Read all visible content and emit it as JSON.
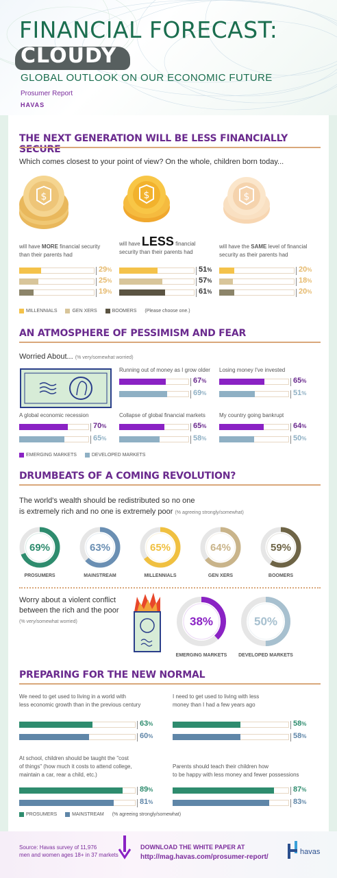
{
  "header": {
    "title_line1": "FINANCIAL FORECAST:",
    "title_line2": "CLOUDY",
    "subtitle": "GLOBAL OUTLOOK ON OUR ECONOMIC FUTURE",
    "report": "Prosumer Report",
    "brand": "HAVAS"
  },
  "section1": {
    "title": "THE NEXT GENERATION WILL BE LESS FINANCIALLY SECURE",
    "question": "Which comes closest to your point of view?  On the whole, children born today...",
    "options": [
      {
        "pre": "will have ",
        "emph": "MORE",
        "post": " financial security",
        "line2": "than their parents had"
      },
      {
        "pre": "will have ",
        "emph": "LESS",
        "post": " financial",
        "line2": "security than their parents had"
      },
      {
        "pre": "will have the ",
        "emph": "SAME",
        "post": " level of financial",
        "line2": "security as their parents had"
      }
    ],
    "legend": [
      "MILLENNIALS",
      "GEN XERS",
      "BOOMERS"
    ],
    "legend_note": "(Please choose one.)",
    "colors": {
      "millennials": "#f4c24a",
      "genx": "#d8c59a",
      "boomers": "#8c8469",
      "muted_text": "#e6ba6e"
    }
  },
  "section2": {
    "title": "AN ATMOSPHERE OF PESSIMISM AND FEAR",
    "heading": "Worried About...",
    "heading_note": "(% very/somewhat worried)",
    "items": [
      "Running out of money as I grow older",
      "Losing money I've invested",
      "A global economic recession",
      "Collapse of global financial markets",
      "My country going bankrupt"
    ],
    "legend": [
      "EMERGING MARKETS",
      "DEVELOPED MARKETS"
    ],
    "colors": {
      "emerging": "#8a22c4",
      "developed": "#8fb0c4"
    }
  },
  "section3": {
    "title": "DRUMBEATS OF A COMING REVOLUTION?",
    "statement_line1": "The world's wealth should be redistributed so no one",
    "statement_line2": "is extremely rich and no one is extremely poor",
    "statement_note": "(% agreeing strongly/somewhat)",
    "conflict_line1": "Worry about a violent conflict",
    "conflict_line2": "between the rich and the poor",
    "conflict_note": "(% very/somewhat worried)"
  },
  "section4": {
    "title": "PREPARING FOR THE NEW NORMAL",
    "items": [
      {
        "line1": "We need to get used to living in a world with",
        "line2": "less economic growth than in the previous century"
      },
      {
        "line1": "I need to get used to living with less",
        "line2": "money than I had a few years ago"
      },
      {
        "line1": "At school, children should be taught the \"cost",
        "line2": "of things\" (how much it costs to attend college,",
        "line3": "maintain a car, rear a child, etc.)"
      },
      {
        "line1": "Parents should teach their children how",
        "line2": "to be happy with less money and fewer possessions"
      }
    ],
    "legend": [
      "PROSUMERS",
      "MAINSTREAM"
    ],
    "legend_note": "(% agreeing strongly/somewhat)",
    "colors": {
      "prosumers": "#2e8c6e",
      "mainstream": "#5f86a8"
    }
  },
  "footer": {
    "source_line1": "Source: Havas survey of 11,976",
    "source_line2": "men and women ages 18+ in 37 markets",
    "download": "DOWNLOAD THE WHITE PAPER AT",
    "url": "http://mag.havas.com/prosumer-report/",
    "logo_text": "havas"
  },
  "chart_data": [
    {
      "type": "bar",
      "title": "THE NEXT GENERATION WILL BE LESS FINANCIALLY SECURE",
      "categories": [
        "MORE",
        "LESS",
        "SAME"
      ],
      "series": [
        {
          "name": "MILLENNIALS",
          "values": [
            29,
            51,
            20
          ]
        },
        {
          "name": "GEN XERS",
          "values": [
            25,
            57,
            18
          ]
        },
        {
          "name": "BOOMERS",
          "values": [
            19,
            61,
            20
          ]
        }
      ],
      "ylim": [
        0,
        100
      ]
    },
    {
      "type": "bar",
      "title": "AN ATMOSPHERE OF PESSIMISM AND FEAR",
      "categories": [
        "Running out of money as I grow older",
        "Losing money I've invested",
        "A global economic recession",
        "Collapse of global financial markets",
        "My country going bankrupt"
      ],
      "series": [
        {
          "name": "EMERGING MARKETS",
          "values": [
            67,
            65,
            70,
            65,
            64
          ]
        },
        {
          "name": "DEVELOPED MARKETS",
          "values": [
            69,
            51,
            65,
            58,
            50
          ]
        }
      ],
      "ylim": [
        0,
        100
      ]
    },
    {
      "type": "pie",
      "title": "DRUMBEATS OF A COMING REVOLUTION?",
      "categories": [
        "PROSUMERS",
        "MAINSTREAM",
        "MILLENNIALS",
        "GEN XERS",
        "BOOMERS"
      ],
      "values": [
        69,
        63,
        65,
        64,
        59
      ],
      "colors": [
        "#2e8c6e",
        "#6a8fb3",
        "#f0c040",
        "#c9b48a",
        "#6e6446"
      ]
    },
    {
      "type": "pie",
      "categories": [
        "EMERGING MARKETS",
        "DEVELOPED MARKETS"
      ],
      "values": [
        38,
        50
      ],
      "colors": [
        "#8a22c4",
        "#a7c0cf"
      ]
    },
    {
      "type": "bar",
      "title": "PREPARING FOR THE NEW NORMAL",
      "categories": [
        "less economic growth",
        "living with less money",
        "cost of things",
        "happy with less"
      ],
      "series": [
        {
          "name": "PROSUMERS",
          "values": [
            63,
            58,
            89,
            87
          ]
        },
        {
          "name": "MAINSTREAM",
          "values": [
            60,
            58,
            81,
            83
          ]
        }
      ],
      "ylim": [
        0,
        100
      ]
    }
  ]
}
